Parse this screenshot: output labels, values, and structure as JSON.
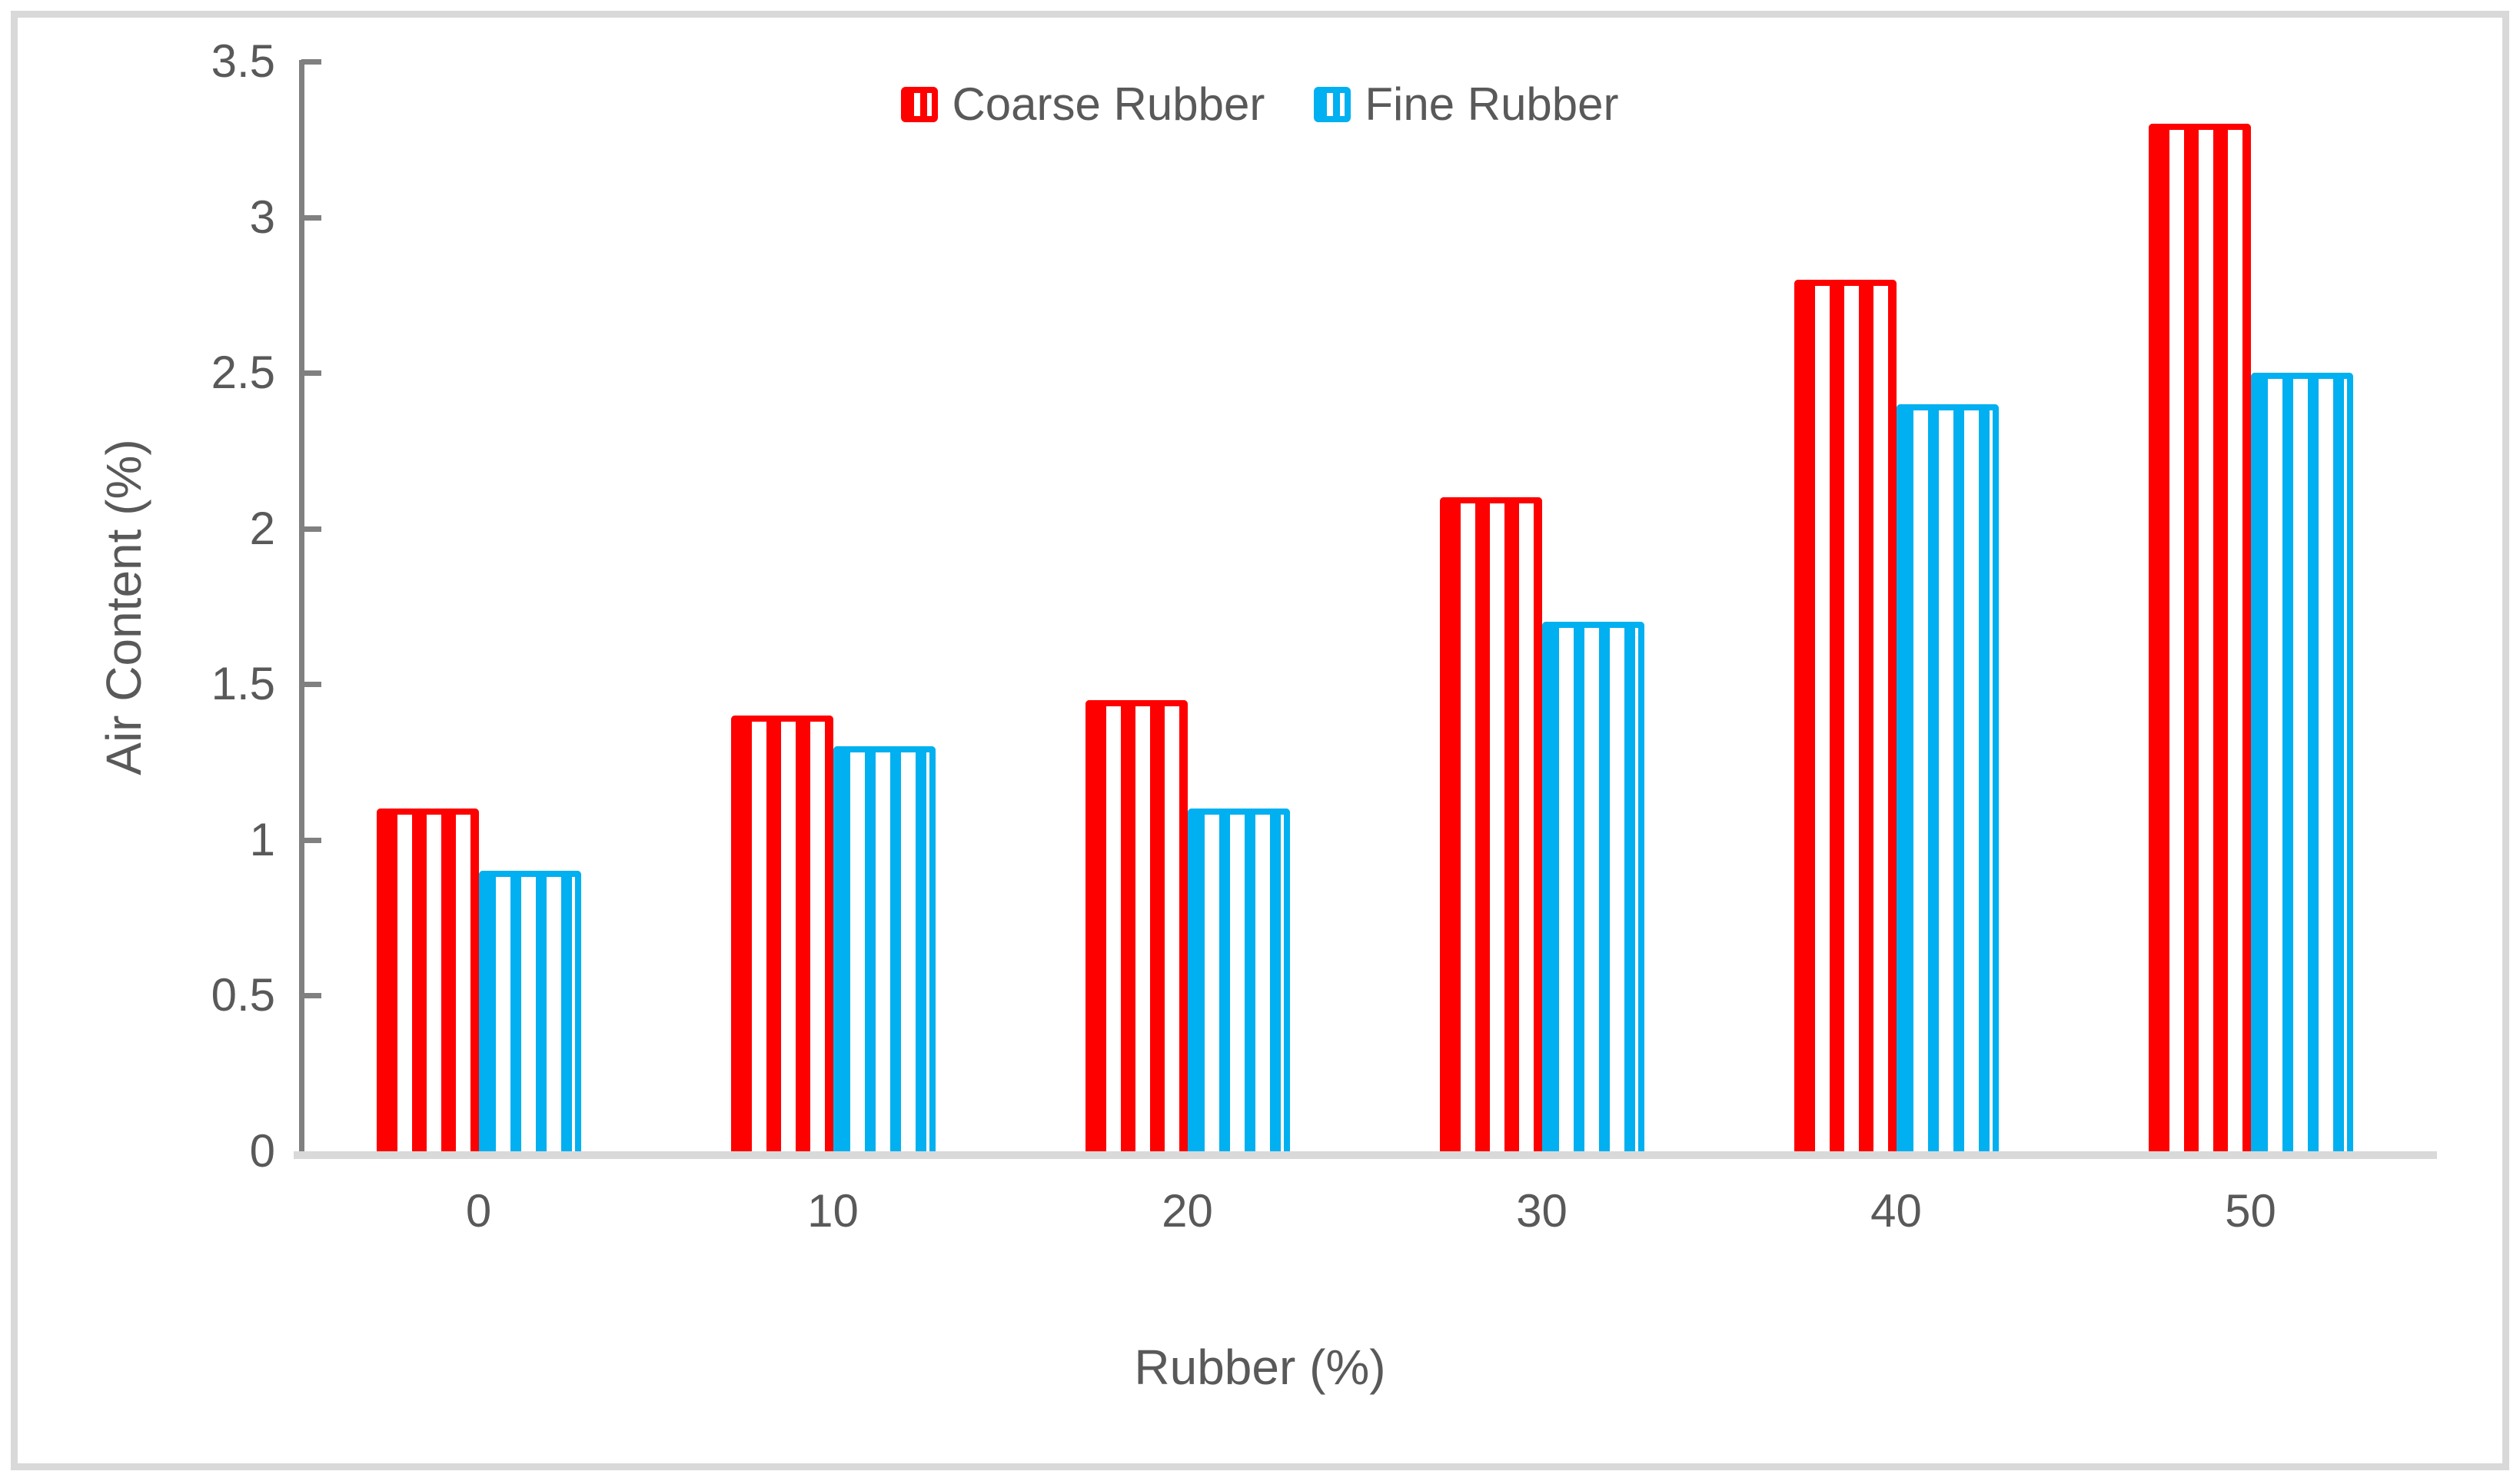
{
  "figure": {
    "legend": [
      {
        "label": "Coarse Rubber",
        "color": "#FF0000"
      },
      {
        "label": "Fine Rubber",
        "color": "#00B0F0"
      }
    ],
    "y_axis": {
      "title": "Air Content (%)",
      "tick_labels": [
        "3.5",
        "3",
        "2.5",
        "2",
        "1.5",
        "1",
        "0.5",
        "0"
      ]
    },
    "x_axis": {
      "title": "Rubber (%)",
      "tick_labels": [
        "0",
        "10",
        "20",
        "30",
        "40",
        "50"
      ]
    },
    "colors": {
      "coarse": "#FF0000",
      "fine": "#00B0F0",
      "text": "#595959",
      "y_axis_line": "#808080",
      "x_axis_line": "#D9D9D9",
      "frame_border": "#D9D9D9"
    }
  },
  "chart_data": {
    "type": "bar",
    "categories": [
      0,
      10,
      20,
      30,
      40,
      50
    ],
    "series": [
      {
        "name": "Coarse Rubber",
        "color": "#FF0000",
        "pattern": "vertical-stripes",
        "values": [
          1.1,
          1.4,
          1.45,
          2.1,
          2.8,
          3.3
        ]
      },
      {
        "name": "Fine Rubber",
        "color": "#00B0F0",
        "pattern": "vertical-stripes",
        "values": [
          0.9,
          1.3,
          1.1,
          1.7,
          2.4,
          2.5
        ]
      }
    ],
    "title": "",
    "xlabel": "Rubber (%)",
    "ylabel": "Air Content (%)",
    "ylim": [
      0,
      3.5
    ],
    "ytick_step": 0.5,
    "grid": false,
    "legend_position": "top-center"
  }
}
